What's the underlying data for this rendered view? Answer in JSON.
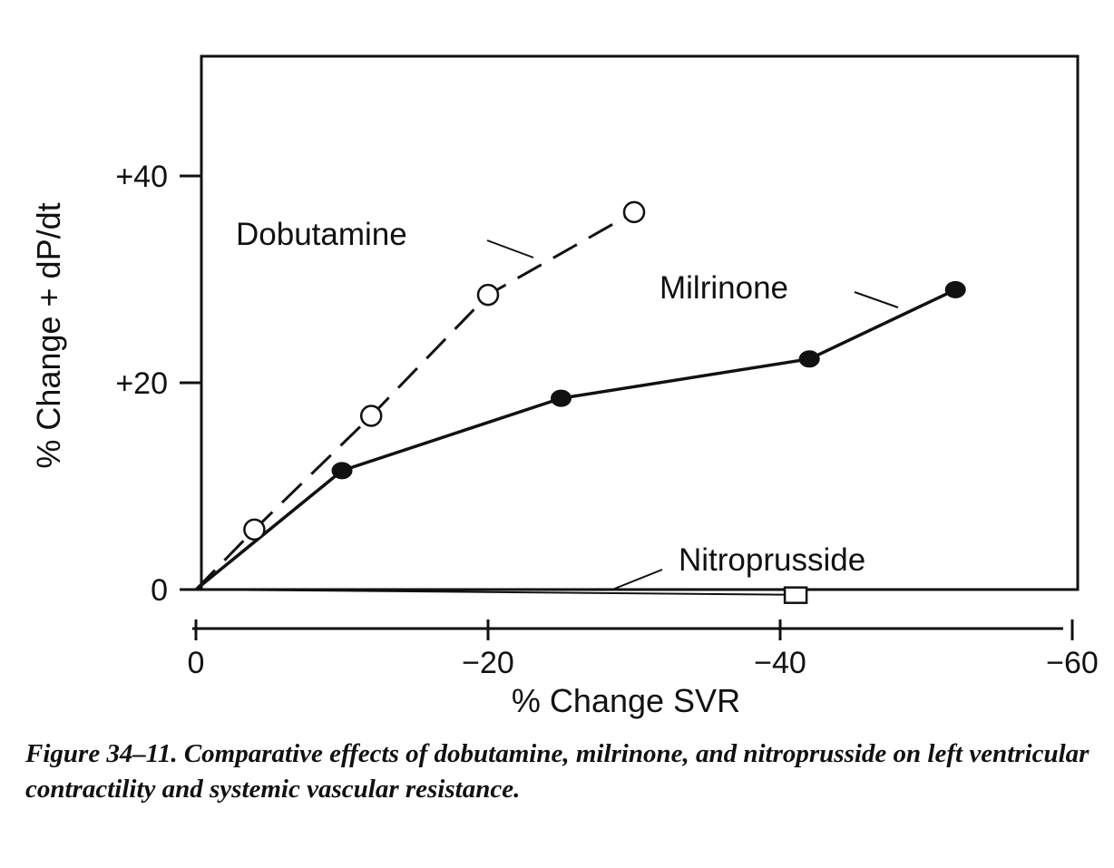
{
  "chart_data": {
    "type": "line",
    "title": "",
    "xlabel": "% Change SVR",
    "ylabel": "% Change + dP/dt",
    "xlim": [
      0,
      -60
    ],
    "ylim": [
      0,
      52
    ],
    "x_ticks": [
      {
        "value": 0,
        "label": "0"
      },
      {
        "value": -20,
        "label": "−20"
      },
      {
        "value": -40,
        "label": "−40"
      },
      {
        "value": -60,
        "label": "−60"
      }
    ],
    "y_ticks": [
      {
        "value": 0,
        "label": "0"
      },
      {
        "value": 20,
        "label": "+20"
      },
      {
        "value": 40,
        "label": "+40"
      }
    ],
    "series": [
      {
        "name": "Dobutamine",
        "line_style": "dashed",
        "marker": "open-circle",
        "x": [
          0,
          -4,
          -12,
          -20,
          -30
        ],
        "y": [
          0,
          5.8,
          16.8,
          28.5,
          36.5
        ]
      },
      {
        "name": "Milrinone",
        "line_style": "solid",
        "marker": "filled-circle",
        "x": [
          0,
          -10,
          -25,
          -42,
          -52
        ],
        "y": [
          0,
          11.5,
          18.5,
          22.3,
          29
        ]
      },
      {
        "name": "Nitroprusside",
        "line_style": "solid-thin",
        "marker": "open-square",
        "x": [
          0,
          -41
        ],
        "y": [
          0,
          -0.5
        ]
      }
    ]
  },
  "caption": "Figure 34–11. Comparative effects of dobutamine, milrinone, and nitroprusside on left ventricular contractility and systemic vascular resistance.",
  "colors": {
    "ink": "#111111",
    "background": "#ffffff"
  }
}
